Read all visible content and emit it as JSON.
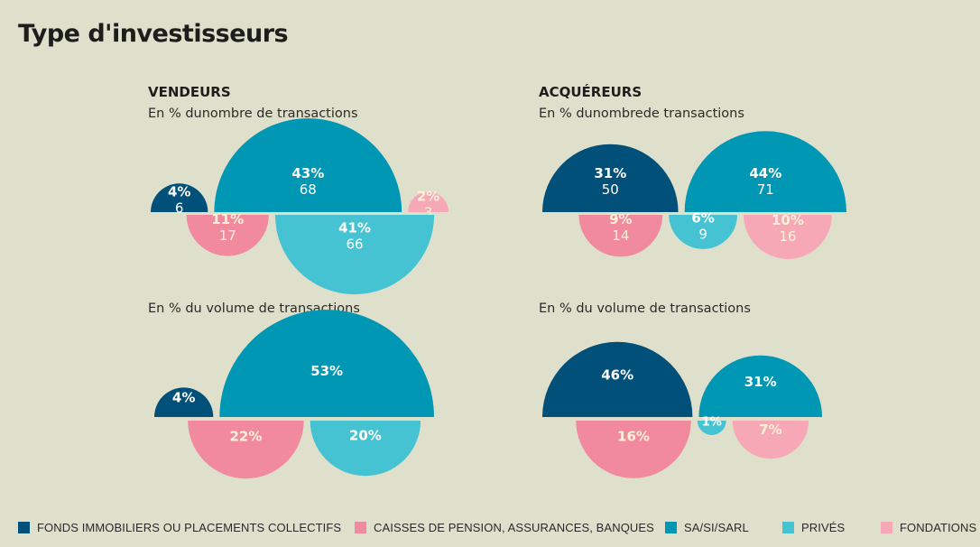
{
  "title": "Type d'investisseurs",
  "legend": [
    {
      "label": "FONDS IMMOBILIERS OU PLACEMENTS COLLECTIFS",
      "color": "#00507a"
    },
    {
      "label": "CAISSES DE PENSION, ASSURANCES, BANQUES",
      "color": "#f28a9f"
    },
    {
      "label": "SA/SI/SARL",
      "color": "#0097b4"
    },
    {
      "label": "PRIVÉS",
      "color": "#46c3d3"
    },
    {
      "label": "FONDATIONS",
      "color": "#f7a8b6"
    }
  ],
  "panels": {
    "vendeurs": {
      "heading": "VENDEURS",
      "sub_count": "En % dunombre de transactions",
      "sub_volume": "En % du volume de transactions"
    },
    "acquereurs": {
      "heading": "ACQUÉREURS",
      "sub_count": "En % dunombrede transactions",
      "sub_volume": "En % du volume de transactions"
    }
  },
  "chart_data": [
    {
      "type": "semicircle",
      "panel": "VENDEURS",
      "subtitle": "En % dunombre de transactions",
      "top": [
        {
          "category": "FONDS IMMOBILIERS OU PLACEMENTS COLLECTIFS",
          "percent": "4%",
          "count": "6",
          "value": 4
        },
        {
          "category": "SA/SI/SARL",
          "percent": "43%",
          "count": "68",
          "value": 43
        },
        {
          "category": "FONDATIONS",
          "percent": "2%",
          "count": "3",
          "value": 2
        }
      ],
      "bottom": [
        {
          "category": "CAISSES DE PENSION, ASSURANCES, BANQUES",
          "percent": "11%",
          "count": "17",
          "value": 11
        },
        {
          "category": "PRIVÉS",
          "percent": "41%",
          "count": "66",
          "value": 41
        }
      ]
    },
    {
      "type": "semicircle",
      "panel": "ACQUÉREURS",
      "subtitle": "En % dunombrede transactions",
      "top": [
        {
          "category": "FONDS IMMOBILIERS OU PLACEMENTS COLLECTIFS",
          "percent": "31%",
          "count": "50",
          "value": 31
        },
        {
          "category": "SA/SI/SARL",
          "percent": "44%",
          "count": "71",
          "value": 44
        }
      ],
      "bottom": [
        {
          "category": "CAISSES DE PENSION, ASSURANCES, BANQUES",
          "percent": "9%",
          "count": "14",
          "value": 9
        },
        {
          "category": "PRIVÉS",
          "percent": "6%",
          "count": "9",
          "value": 6
        },
        {
          "category": "FONDATIONS",
          "percent": "10%",
          "count": "16",
          "value": 10
        }
      ]
    },
    {
      "type": "semicircle",
      "panel": "VENDEURS",
      "subtitle": "En % du volume de transactions",
      "top": [
        {
          "category": "FONDS IMMOBILIERS OU PLACEMENTS COLLECTIFS",
          "percent": "4%",
          "value": 4
        },
        {
          "category": "SA/SI/SARL",
          "percent": "53%",
          "value": 53
        }
      ],
      "bottom": [
        {
          "category": "CAISSES DE PENSION, ASSURANCES, BANQUES",
          "percent": "22%",
          "value": 22
        },
        {
          "category": "PRIVÉS",
          "percent": "20%",
          "value": 20
        }
      ]
    },
    {
      "type": "semicircle",
      "panel": "ACQUÉREURS",
      "subtitle": "En % du volume de transactions",
      "top": [
        {
          "category": "FONDS IMMOBILIERS OU PLACEMENTS COLLECTIFS",
          "percent": "46%",
          "value": 46
        },
        {
          "category": "SA/SI/SARL",
          "percent": "31%",
          "value": 31
        }
      ],
      "bottom": [
        {
          "category": "CAISSES DE PENSION, ASSURANCES, BANQUES",
          "percent": "16%",
          "value": 16
        },
        {
          "category": "PRIVÉS",
          "percent": "1%",
          "value": 1
        },
        {
          "category": "FONDATIONS",
          "percent": "7%",
          "value": 7
        }
      ]
    }
  ]
}
